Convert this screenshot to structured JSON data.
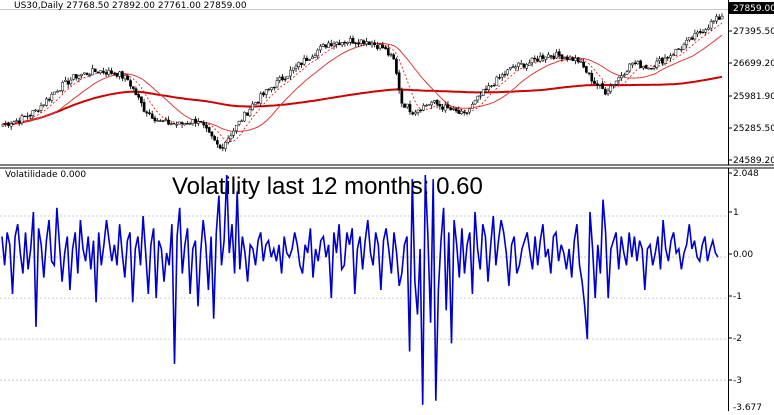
{
  "header": {
    "symbol_info": "US30,Daily  27768.50 27892.00 27761.00 27859.00",
    "indicator_info": "Volatilidade 0.000"
  },
  "annotation": "Volatility last 12 months: 0.60",
  "colors": {
    "background": "#ffffff",
    "candle_bull": "#ffffff",
    "candle_bear": "#000000",
    "candle_outline": "#000000",
    "ma_fast": "#e03a3a",
    "ma_slow": "#cc0000",
    "ma_dotted": "#ff0000",
    "volatility_line": "#0000cc",
    "grid": "#c0c0c0",
    "price_tag_bg": "#000000",
    "price_tag_text": "#ffffff"
  },
  "price_axis": {
    "ticks": [
      "27395.50",
      "26699.20",
      "25981.90",
      "25285.50",
      "24589.20"
    ],
    "current_price": "27859.00"
  },
  "volatility_axis": {
    "ticks": [
      "2.048",
      "1",
      "0.00",
      "-1",
      "-2",
      "-3",
      "-3.677"
    ]
  },
  "chart_data": [
    {
      "type": "candlestick",
      "title": "US30,Daily",
      "ylim": [
        24520,
        28000
      ],
      "ohlc_last": {
        "open": 27768.5,
        "high": 27892.0,
        "low": 27761.0,
        "close": 27859.0
      },
      "close_anchors": [
        [
          0,
          25400
        ],
        [
          6,
          25500
        ],
        [
          12,
          25700
        ],
        [
          20,
          26200
        ],
        [
          27,
          26500
        ],
        [
          35,
          26620
        ],
        [
          42,
          26560
        ],
        [
          46,
          26420
        ],
        [
          52,
          25750
        ],
        [
          58,
          25450
        ],
        [
          65,
          25400
        ],
        [
          72,
          25500
        ],
        [
          76,
          25150
        ],
        [
          80,
          24850
        ],
        [
          86,
          25350
        ],
        [
          92,
          25850
        ],
        [
          100,
          26300
        ],
        [
          107,
          26650
        ],
        [
          114,
          27000
        ],
        [
          120,
          27250
        ],
        [
          127,
          27300
        ],
        [
          134,
          27300
        ],
        [
          140,
          27150
        ],
        [
          144,
          26850
        ],
        [
          147,
          25900
        ],
        [
          151,
          25700
        ],
        [
          158,
          25900
        ],
        [
          164,
          25750
        ],
        [
          170,
          25600
        ],
        [
          176,
          26050
        ],
        [
          182,
          26400
        ],
        [
          188,
          26700
        ],
        [
          194,
          26800
        ],
        [
          200,
          26980
        ],
        [
          206,
          26960
        ],
        [
          212,
          26850
        ],
        [
          218,
          26350
        ],
        [
          222,
          26150
        ],
        [
          226,
          26400
        ],
        [
          232,
          26800
        ],
        [
          238,
          26700
        ],
        [
          244,
          26900
        ],
        [
          250,
          27150
        ],
        [
          256,
          27450
        ],
        [
          261,
          27700
        ],
        [
          265,
          27859
        ]
      ],
      "moving_averages": [
        {
          "period": "fast",
          "style": "dotted"
        },
        {
          "period": "medium",
          "style": "solid thin"
        },
        {
          "period": "slow",
          "style": "solid thick"
        }
      ]
    },
    {
      "type": "line",
      "title": "Volatilidade",
      "ylim": [
        -3.677,
        2.048
      ],
      "series": [
        {
          "values": [
            0.5,
            -0.2,
            0.6,
            0.3,
            -0.9,
            0.5,
            0.8,
            0.1,
            -0.4,
            0.6,
            -0.3,
            0.2,
            1.1,
            -1.7,
            0.7,
            0.3,
            -0.5,
            0.4,
            0.9,
            -0.1,
            -0.2,
            1.2,
            0.3,
            -0.6,
            0.1,
            0.5,
            -0.8,
            0.2,
            0.6,
            -0.4,
            0.9,
            0.2,
            -0.1,
            0.5,
            -0.3,
            0.4,
            -1.1,
            0.6,
            -0.2,
            0.3,
            0.9,
            0.4,
            -0.1,
            0.3,
            -0.2,
            0.8,
            0.1,
            -0.5,
            0.4,
            0.6,
            -1.1,
            0.2,
            0.5,
            -0.2,
            1.0,
            0.1,
            -0.9,
            0.3,
            0.7,
            -1.0,
            0.4,
            0.2,
            -0.6,
            0.1,
            -0.2,
            0.8,
            -2.6,
            0.5,
            1.2,
            -0.4,
            0.3,
            0.7,
            -0.9,
            0.2,
            0.4,
            -1.2,
            0.1,
            0.9,
            0.3,
            -0.8,
            0.5,
            -1.5,
            0.6,
            1.5,
            -0.2,
            0.4,
            2.0,
            0.1,
            0.8,
            -0.4,
            1.6,
            -0.3,
            0.5,
            0.1,
            -0.6,
            0.3,
            0.2,
            -0.2,
            0.4,
            0.6,
            -0.1,
            0.3,
            0.4,
            0.0,
            0.2,
            -0.1,
            0.3,
            -0.4,
            0.5,
            0.1,
            0.0,
            0.2,
            0.6,
            0.3,
            -0.2,
            -0.4,
            0.3,
            0.1,
            0.7,
            -0.5,
            0.2,
            -0.1,
            0.4,
            0.5,
            0.0,
            0.3,
            -1.0,
            0.6,
            0.1,
            0.8,
            -0.3,
            -0.2,
            0.6,
            0.3,
            0.7,
            -0.9,
            0.2,
            0.5,
            -0.3,
            0.4,
            0.9,
            0.1,
            -0.2,
            0.6,
            0.3,
            -0.8,
            0.4,
            0.7,
            0.2,
            -0.4,
            0.6,
            0.1,
            -0.7,
            -0.4,
            0.3,
            0.5,
            -2.3,
            1.9,
            -0.6,
            -1.4,
            0.2,
            -3.6,
            2.0,
            0.5,
            -1.6,
            1.9,
            -3.5,
            -0.8,
            0.4,
            1.2,
            -1.3,
            0.6,
            -2.1,
            0.9,
            0.3,
            -0.5,
            0.7,
            -0.4,
            0.3,
            0.6,
            -0.9,
            1.1,
            0.2,
            -0.3,
            0.8,
            0.5,
            -0.6,
            0.3,
            1.0,
            -0.2,
            0.4,
            0.9,
            0.6,
            0.1,
            -0.7,
            0.3,
            0.5,
            -0.4,
            -0.2,
            0.2,
            0.4,
            0.6,
            0.1,
            -0.3,
            0.5,
            -0.2,
            0.4,
            0.8,
            0.0,
            0.2,
            -0.4,
            0.5,
            0.6,
            -0.1,
            0.3,
            0.1,
            -0.3,
            0.2,
            -0.5,
            0.4,
            0.8,
            -0.2,
            -0.6,
            -1.2,
            -2.0,
            1.1,
            0.2,
            -1.0,
            0.3,
            -0.4,
            1.4,
            0.6,
            -1.0,
            0.2,
            0.4,
            0.6,
            -0.3,
            0.5,
            0.1,
            -0.2,
            0.6,
            0.0,
            0.5,
            -0.1,
            0.4,
            0.2,
            -0.8,
            0.2,
            0.3,
            -0.2,
            0.1,
            0.5,
            -0.3,
            0.9,
            0.2,
            -0.1,
            0.4,
            0.6,
            0.1,
            0.2,
            -0.3,
            0.1,
            0.3,
            0.8,
            0.2,
            0.4,
            0.0,
            -0.1,
            0.3,
            0.5,
            -0.1,
            0.2,
            0.4,
            0.1,
            0.0
          ]
        }
      ]
    }
  ]
}
